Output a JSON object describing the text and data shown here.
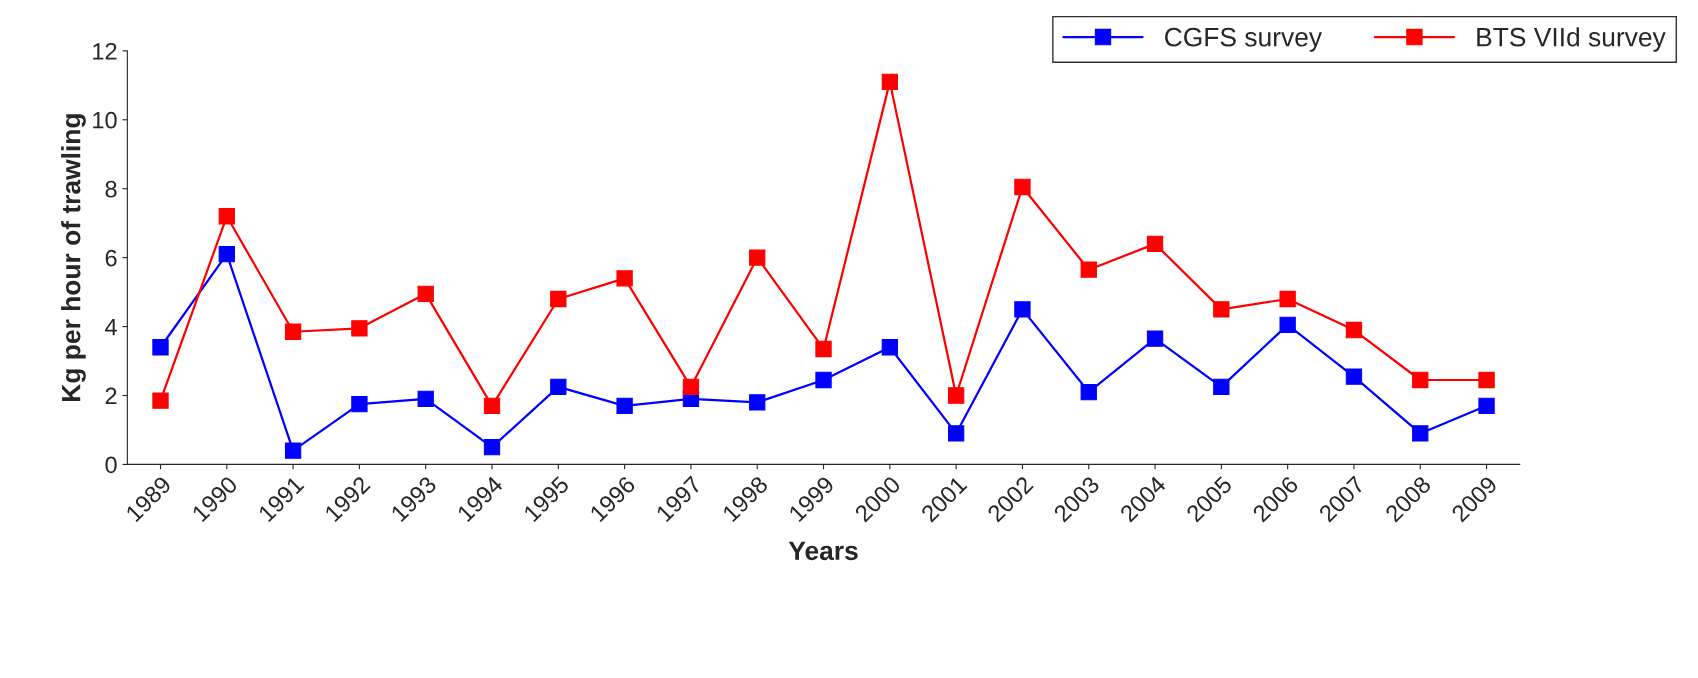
{
  "chart_data": {
    "type": "line",
    "xlabel": "Years",
    "ylabel": "Kg per hour of trawling",
    "categories": [
      "1989",
      "1990",
      "1991",
      "1992",
      "1993",
      "1994",
      "1995",
      "1996",
      "1997",
      "1998",
      "1999",
      "2000",
      "2001",
      "2002",
      "2003",
      "2004",
      "2005",
      "2006",
      "2007",
      "2008",
      "2009"
    ],
    "series": [
      {
        "name": "CGFS survey",
        "color": "#0000ff",
        "values": [
          3.4,
          6.1,
          0.4,
          1.75,
          1.9,
          0.5,
          2.25,
          1.7,
          1.9,
          1.8,
          2.45,
          3.4,
          0.9,
          4.5,
          2.1,
          3.65,
          2.25,
          4.05,
          2.55,
          0.9,
          1.7
        ]
      },
      {
        "name": "BTS VIId survey",
        "color": "#ff0000",
        "values": [
          1.85,
          7.2,
          3.85,
          3.95,
          4.95,
          1.7,
          4.8,
          5.4,
          2.25,
          6.0,
          3.35,
          11.1,
          2.0,
          8.05,
          5.65,
          6.4,
          4.5,
          4.8,
          3.9,
          2.45,
          2.45
        ]
      }
    ],
    "ylim": [
      0,
      12
    ],
    "yticks": [
      0,
      2,
      4,
      6,
      8,
      10,
      12
    ],
    "marker": "square",
    "line_style": "solid",
    "grid": false,
    "legend": "top right"
  }
}
